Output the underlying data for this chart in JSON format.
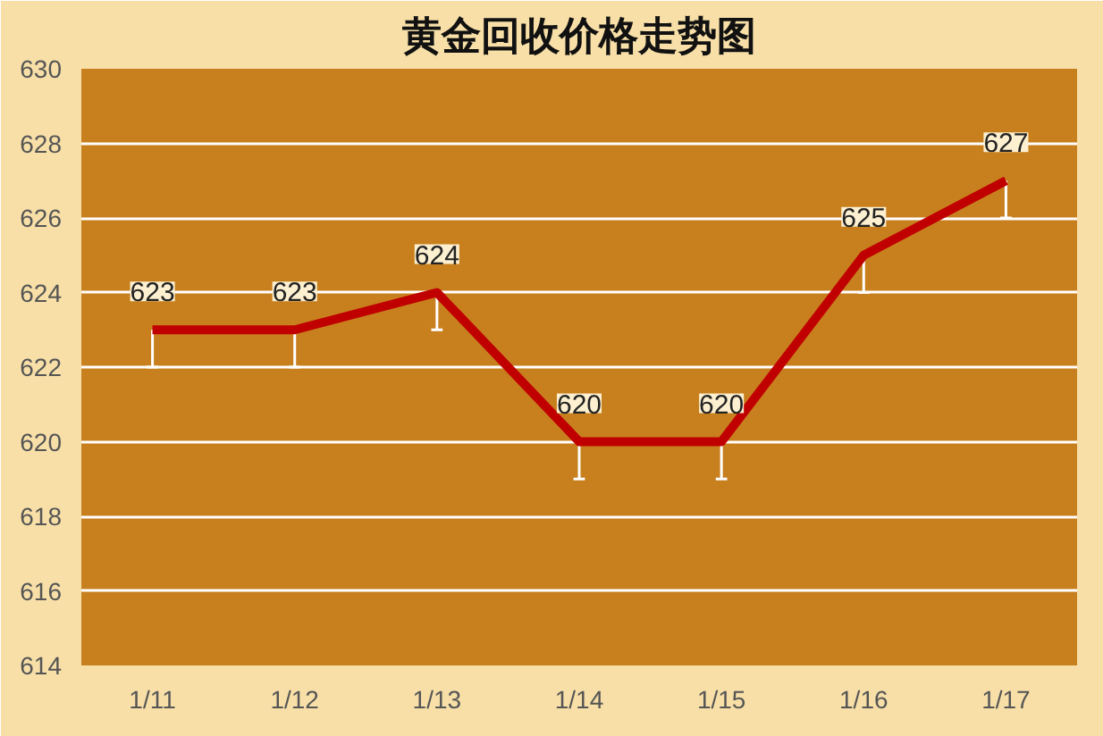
{
  "chart_data": {
    "type": "line",
    "title": "黄金回收价格走势图",
    "categories": [
      "1/11",
      "1/12",
      "1/13",
      "1/14",
      "1/15",
      "1/16",
      "1/17"
    ],
    "series": [
      {
        "color": "#c00000",
        "values": [
          623,
          623,
          624,
          620,
          620,
          625,
          627
        ],
        "errors": [
          [
            622,
            623
          ],
          [
            622,
            623
          ],
          [
            623,
            624
          ],
          [
            619,
            620
          ],
          [
            619,
            620
          ],
          [
            624,
            625
          ],
          [
            626,
            627
          ]
        ]
      }
    ],
    "ylim": [
      614,
      630
    ],
    "yticks": [
      614,
      616,
      618,
      620,
      622,
      624,
      626,
      628,
      630
    ],
    "grid": "y",
    "marker": "none",
    "line_style": "solid",
    "data_labels": true
  }
}
